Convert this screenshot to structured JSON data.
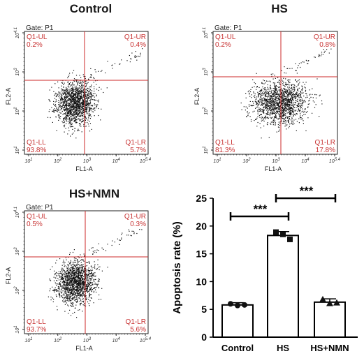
{
  "titles": {
    "control": "Control",
    "hs": "HS",
    "hs_nmn": "HS+NMN"
  },
  "colors": {
    "gate_line": "#cc2a2a",
    "quadrant_text": "#c83232",
    "dots": "#111111",
    "axis": "#222222"
  },
  "chart_data": [
    {
      "type": "scatter",
      "title": "Control",
      "gate": "Gate: P1",
      "xlabel": "FL1-A",
      "ylabel": "FL2-A",
      "x_ticks": [
        "10^1",
        "10^2",
        "10^3",
        "10^4",
        "10^5.4"
      ],
      "y_ticks": [
        "10^1",
        "10^2",
        "10^3",
        "10^4.1"
      ],
      "quadrants": [
        {
          "name": "Q1-UL",
          "percent": "0.2%"
        },
        {
          "name": "Q1-UR",
          "percent": "0.4%"
        },
        {
          "name": "Q1-LL",
          "percent": "93.8%"
        },
        {
          "name": "Q1-LR",
          "percent": "5.7%"
        }
      ]
    },
    {
      "type": "scatter",
      "title": "HS",
      "gate": "Gate: P1",
      "xlabel": "FL1-A",
      "ylabel": "FL2-A",
      "x_ticks": [
        "10^1",
        "10^2",
        "10^3",
        "10^4",
        "10^5.4"
      ],
      "y_ticks": [
        "10^1",
        "10^2",
        "10^3",
        "10^4.1"
      ],
      "quadrants": [
        {
          "name": "Q1-UL",
          "percent": "0.2%"
        },
        {
          "name": "Q1-UR",
          "percent": "0.8%"
        },
        {
          "name": "Q1-LL",
          "percent": "81.3%"
        },
        {
          "name": "Q1-LR",
          "percent": "17.8%"
        }
      ]
    },
    {
      "type": "scatter",
      "title": "HS+NMN",
      "gate": "Gate: P1",
      "xlabel": "FL1-A",
      "ylabel": "FL2-A",
      "x_ticks": [
        "10^1",
        "10^2",
        "10^3",
        "10^4",
        "10^5.4"
      ],
      "y_ticks": [
        "10^1",
        "10^2",
        "10^3",
        "10^4.1"
      ],
      "quadrants": [
        {
          "name": "Q1-UL",
          "percent": "0.5%"
        },
        {
          "name": "Q1-UR",
          "percent": "0.3%"
        },
        {
          "name": "Q1-LL",
          "percent": "93.7%"
        },
        {
          "name": "Q1-LR",
          "percent": "5.6%"
        }
      ]
    },
    {
      "type": "bar",
      "categories": [
        "Control",
        "HS",
        "HS+NMN"
      ],
      "values": [
        5.8,
        18.3,
        6.3
      ],
      "errors": [
        0.4,
        0.7,
        0.6
      ],
      "points": [
        [
          6.0,
          5.7,
          5.8
        ],
        [
          18.9,
          18.5,
          17.6
        ],
        [
          6.8,
          6.1,
          6.2
        ]
      ],
      "ylabel": "Apoptosis rate (%)",
      "ylim": [
        0,
        25
      ],
      "yticks": [
        0,
        5,
        10,
        15,
        20,
        25
      ],
      "significance": [
        {
          "from": 0,
          "to": 1,
          "label": "***"
        },
        {
          "from": 1,
          "to": 2,
          "label": "***"
        }
      ]
    }
  ]
}
